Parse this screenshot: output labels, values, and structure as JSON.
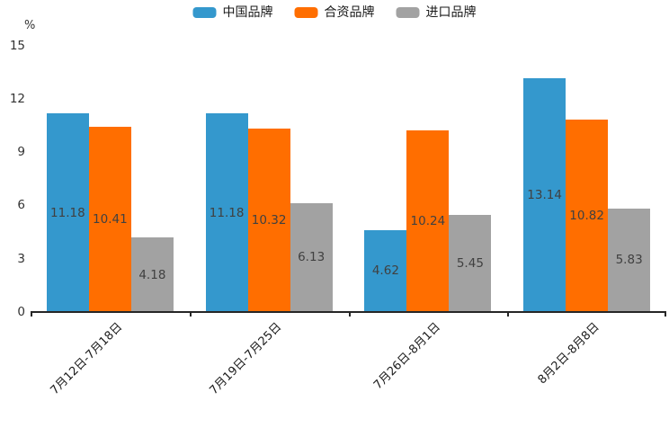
{
  "chart_data": {
    "type": "bar",
    "title": "",
    "unit_label": "%",
    "categories": [
      "7月12日-7月18日",
      "7月19日-7月25日",
      "7月26日-8月1日",
      "8月2日-8月8日"
    ],
    "series": [
      {
        "name": "中国品牌",
        "color": "#3498cd",
        "values": [
          11.18,
          11.18,
          4.62,
          13.14
        ]
      },
      {
        "name": "合资品牌",
        "color": "#ff6e00",
        "values": [
          10.41,
          10.32,
          10.24,
          10.82
        ]
      },
      {
        "name": "进口品牌",
        "color": "#a2a2a2",
        "values": [
          4.18,
          6.13,
          5.45,
          5.83
        ]
      }
    ],
    "ylim": [
      0,
      15
    ],
    "yticks": [
      0,
      3,
      6,
      9,
      12,
      15
    ],
    "grid": false,
    "legend_position": "top",
    "bar_label_decimals": 2,
    "colors": {
      "axis": "#262626",
      "tick_text": "#333333",
      "bar_label_text": "#404040",
      "legend_text": "#1a1a1a",
      "background": "#ffffff"
    }
  }
}
